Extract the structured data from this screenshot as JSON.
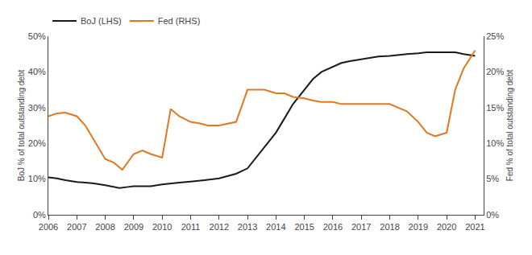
{
  "chart_data": {
    "type": "line",
    "y_label": "BoJ % of total outstanding debt",
    "y2_label": "Fed % of total outstanding debt",
    "series": [
      {
        "name": "BoJ (LHS)",
        "color": "#1a1a1a",
        "axis": "y",
        "x": [
          2006.0,
          2006.3,
          2006.6,
          2007.0,
          2007.3,
          2007.6,
          2008.0,
          2008.3,
          2008.5,
          2008.8,
          2009.0,
          2009.3,
          2009.6,
          2010.0,
          2010.3,
          2010.6,
          2011.0,
          2011.3,
          2011.6,
          2012.0,
          2012.3,
          2012.6,
          2013.0,
          2013.3,
          2013.6,
          2014.0,
          2014.3,
          2014.6,
          2015.0,
          2015.3,
          2015.6,
          2016.0,
          2016.3,
          2016.6,
          2017.0,
          2017.3,
          2017.6,
          2018.0,
          2018.3,
          2018.6,
          2019.0,
          2019.3,
          2019.6,
          2020.0,
          2020.3,
          2020.6,
          2021.0
        ],
        "values": [
          10.5,
          10.2,
          9.7,
          9.2,
          9.0,
          8.8,
          8.3,
          7.8,
          7.5,
          7.8,
          8.0,
          8.0,
          8.0,
          8.5,
          8.8,
          9.0,
          9.3,
          9.5,
          9.8,
          10.2,
          10.8,
          11.5,
          13.0,
          16.0,
          19.0,
          23.0,
          27.0,
          31.0,
          35.0,
          38.0,
          40.0,
          41.5,
          42.5,
          43.0,
          43.5,
          44.0,
          44.3,
          44.5,
          44.8,
          45.0,
          45.2,
          45.5,
          45.5,
          45.5,
          45.5,
          45.0,
          44.5
        ]
      },
      {
        "name": "Fed (RHS)",
        "color": "#e07820",
        "axis": "y2",
        "x": [
          2006.0,
          2006.3,
          2006.6,
          2007.0,
          2007.3,
          2007.6,
          2008.0,
          2008.3,
          2008.6,
          2009.0,
          2009.3,
          2009.6,
          2010.0,
          2010.3,
          2010.6,
          2011.0,
          2011.3,
          2011.6,
          2012.0,
          2012.6,
          2013.0,
          2013.3,
          2013.6,
          2014.0,
          2014.3,
          2014.6,
          2015.0,
          2015.3,
          2015.6,
          2016.0,
          2016.3,
          2016.6,
          2017.0,
          2017.3,
          2017.6,
          2018.0,
          2018.3,
          2018.6,
          2019.0,
          2019.3,
          2019.6,
          2020.0,
          2020.3,
          2020.6,
          2021.0
        ],
        "values": [
          13.8,
          14.2,
          14.3,
          13.8,
          12.5,
          10.5,
          7.8,
          7.3,
          6.3,
          8.5,
          9.0,
          8.5,
          8.0,
          14.8,
          13.8,
          13.0,
          12.8,
          12.5,
          12.5,
          13.0,
          17.5,
          17.5,
          17.5,
          17.0,
          17.0,
          16.5,
          16.3,
          16.0,
          15.8,
          15.8,
          15.5,
          15.5,
          15.5,
          15.5,
          15.5,
          15.5,
          15.0,
          14.5,
          13.0,
          11.5,
          11.0,
          11.5,
          17.5,
          20.5,
          23.0
        ]
      }
    ],
    "xlim": [
      2006,
      2021.3
    ],
    "xticks": [
      2006,
      2007,
      2008,
      2009,
      2010,
      2011,
      2012,
      2013,
      2014,
      2015,
      2016,
      2017,
      2018,
      2019,
      2020,
      2021
    ],
    "ylim": [
      0,
      50
    ],
    "yticks": [
      {
        "value": 0,
        "label": "0%"
      },
      {
        "value": 10,
        "label": "10%"
      },
      {
        "value": 20,
        "label": "20%"
      },
      {
        "value": 30,
        "label": "30%"
      },
      {
        "value": 40,
        "label": "40%"
      },
      {
        "value": 50,
        "label": "50%"
      }
    ],
    "y2lim": [
      0,
      25
    ],
    "y2ticks": [
      {
        "value": 0,
        "label": "0%"
      },
      {
        "value": 5,
        "label": "5%"
      },
      {
        "value": 10,
        "label": "10%"
      },
      {
        "value": 15,
        "label": "15%"
      },
      {
        "value": 20,
        "label": "20%"
      },
      {
        "value": 25,
        "label": "25%"
      }
    ],
    "grid": false,
    "legend": "upper left"
  }
}
